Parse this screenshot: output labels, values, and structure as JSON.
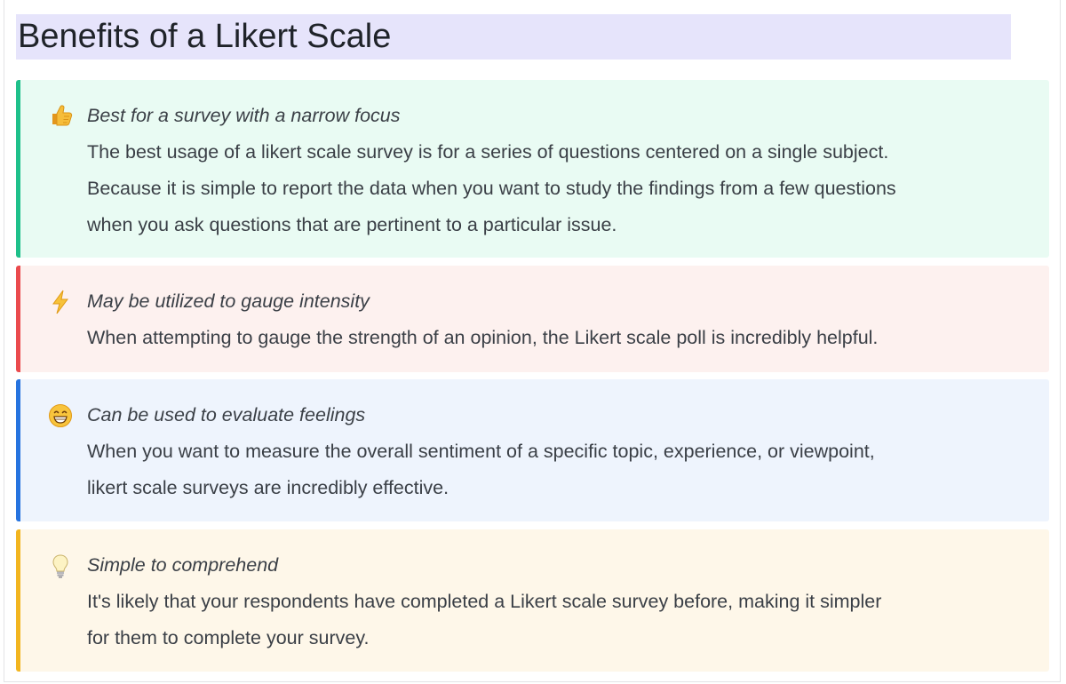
{
  "title": "Benefits of a Likert Scale",
  "callouts": [
    {
      "icon": "thumbs-up-icon",
      "color": "#1ec08a",
      "heading": "Best for a survey with a narrow focus",
      "lines": [
        "The best usage of a likert scale survey is for a series of questions centered on a single subject.",
        "Because it is simple to report the data when you want to study the findings from a few questions",
        "when you ask questions that are pertinent to a particular issue."
      ]
    },
    {
      "icon": "lightning-icon",
      "color": "#ea4a4d",
      "heading": "May be utilized to gauge intensity",
      "lines": [
        "When attempting to gauge the strength of an opinion, the Likert scale poll is incredibly helpful."
      ]
    },
    {
      "icon": "grinning-face-icon",
      "color": "#2673df",
      "heading": "Can be used to evaluate feelings",
      "lines": [
        "When you want to measure the overall sentiment of a specific topic, experience, or viewpoint,",
        "likert scale surveys are incredibly effective."
      ]
    },
    {
      "icon": "light-bulb-icon",
      "color": "#f2b51f",
      "heading": "Simple to comprehend",
      "lines": [
        "It's likely that your respondents have completed a Likert scale survey before, making it simpler",
        "for them to complete your survey."
      ]
    }
  ]
}
